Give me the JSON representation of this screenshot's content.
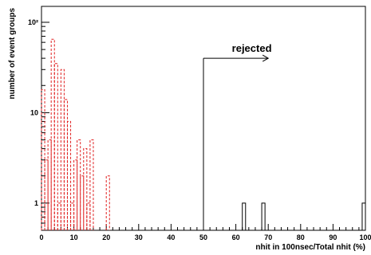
{
  "chart_data": {
    "type": "histogram",
    "title": "",
    "xlabel": "nhit in 100nsec/Total nhit (%)",
    "ylabel": "number of event groups",
    "xlim": [
      0,
      100
    ],
    "ylim": [
      0.5,
      150
    ],
    "y_scale": "log",
    "x_ticks": [
      "0",
      "10",
      "20",
      "30",
      "40",
      "50",
      "60",
      "70",
      "80",
      "90",
      "100"
    ],
    "y_ticks": [
      {
        "value": 1,
        "label": "1"
      },
      {
        "value": 10,
        "label": "10"
      },
      {
        "value": 100,
        "label": "10²"
      }
    ],
    "grid": false,
    "legend": "none",
    "bin_width": 1,
    "series": [
      {
        "style": "dashed",
        "color": "#e02020",
        "bins": [
          {
            "x": 0,
            "y": 18
          },
          {
            "x": 1,
            "y": 3
          },
          {
            "x": 2,
            "y": 5
          },
          {
            "x": 3,
            "y": 65
          },
          {
            "x": 4,
            "y": 35
          },
          {
            "x": 5,
            "y": 1
          },
          {
            "x": 6,
            "y": 30
          },
          {
            "x": 7,
            "y": 14
          },
          {
            "x": 8,
            "y": 8
          },
          {
            "x": 9,
            "y": 1
          },
          {
            "x": 10,
            "y": 3
          },
          {
            "x": 11,
            "y": 5
          },
          {
            "x": 12,
            "y": 2
          },
          {
            "x": 13,
            "y": 4
          },
          {
            "x": 14,
            "y": 1
          },
          {
            "x": 15,
            "y": 5
          },
          {
            "x": 20,
            "y": 2
          }
        ]
      },
      {
        "style": "solid",
        "color": "#000000",
        "bins": [
          {
            "x": 62,
            "y": 1
          },
          {
            "x": 68,
            "y": 1
          },
          {
            "x": 99,
            "y": 1
          }
        ]
      }
    ],
    "annotation": {
      "text": "rejected",
      "cut_x": 50,
      "arrow_to_x": 70,
      "arrow_y": 40
    }
  }
}
